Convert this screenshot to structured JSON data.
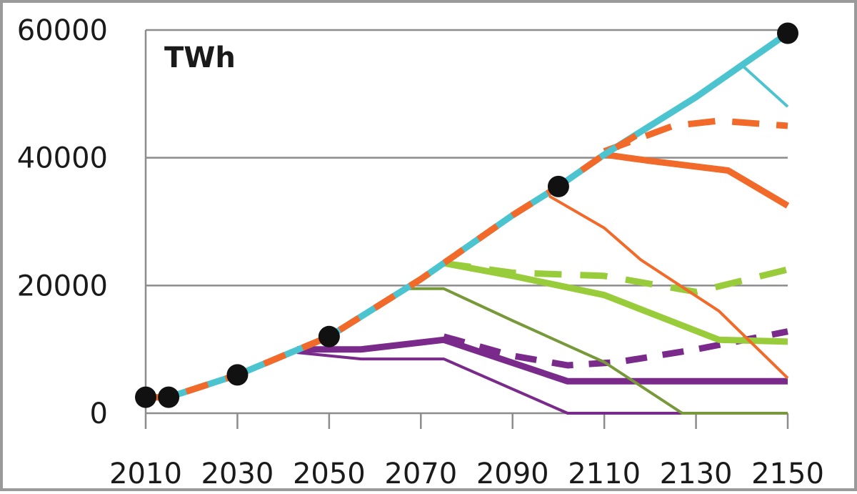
{
  "chart_data": {
    "type": "line",
    "title": "",
    "unit_label": "TWh",
    "xlabel": "",
    "ylabel": "",
    "xlim": [
      2010,
      2150
    ],
    "ylim": [
      0,
      60000
    ],
    "x_ticks": [
      "2010",
      "2030",
      "2050",
      "2070",
      "2090",
      "2110",
      "2130",
      "2150"
    ],
    "y_ticks": [
      "0",
      "20000",
      "40000",
      "60000"
    ],
    "grid": "horizontal",
    "colors": {
      "teal": "#4cc4cf",
      "orange": "#f26a2a",
      "lightgreen": "#99cc3a",
      "olive": "#77993a",
      "purple": "#7a2a8a",
      "marker": "#111111",
      "grid": "#8c8c8c",
      "frame": "#9a9a9a"
    },
    "markers": [
      {
        "x": 2010,
        "y": 2500
      },
      {
        "x": 2015,
        "y": 2500
      },
      {
        "x": 2030,
        "y": 6000
      },
      {
        "x": 2050,
        "y": 12000
      },
      {
        "x": 2100,
        "y": 35500
      },
      {
        "x": 2150,
        "y": 59500
      }
    ],
    "series": [
      {
        "name": "purple thin",
        "color": "purple",
        "width": 4,
        "dash": "",
        "points": [
          [
            2043,
            9500
          ],
          [
            2057,
            8500
          ],
          [
            2075,
            8500
          ],
          [
            2102,
            0
          ],
          [
            2150,
            0
          ]
        ]
      },
      {
        "name": "purple thick",
        "color": "purple",
        "width": 9,
        "dash": "",
        "points": [
          [
            2043,
            10000
          ],
          [
            2057,
            10000
          ],
          [
            2075,
            11500
          ],
          [
            2102,
            5000
          ],
          [
            2130,
            5000
          ],
          [
            2150,
            5000
          ]
        ]
      },
      {
        "name": "purple dashed",
        "color": "purple",
        "width": 9,
        "dash": "30,22",
        "points": [
          [
            2075,
            12000
          ],
          [
            2090,
            9000
          ],
          [
            2102,
            7500
          ],
          [
            2113,
            8000
          ],
          [
            2130,
            10000
          ],
          [
            2150,
            12800
          ]
        ]
      },
      {
        "name": "olive thin",
        "color": "olive",
        "width": 4,
        "dash": "",
        "points": [
          [
            2067,
            19500
          ],
          [
            2075,
            19500
          ],
          [
            2090,
            14500
          ],
          [
            2110,
            8000
          ],
          [
            2127,
            0
          ],
          [
            2150,
            0
          ]
        ]
      },
      {
        "name": "light green thick",
        "color": "lightgreen",
        "width": 9,
        "dash": "",
        "points": [
          [
            2075,
            23500
          ],
          [
            2090,
            21500
          ],
          [
            2110,
            18500
          ],
          [
            2135,
            11500
          ],
          [
            2150,
            11200
          ]
        ]
      },
      {
        "name": "light green dashed",
        "color": "lightgreen",
        "width": 9,
        "dash": "38,26",
        "points": [
          [
            2075,
            23500
          ],
          [
            2090,
            22000
          ],
          [
            2110,
            21500
          ],
          [
            2130,
            19000
          ],
          [
            2150,
            22500
          ]
        ]
      },
      {
        "name": "orange thin",
        "color": "orange",
        "width": 4,
        "dash": "",
        "points": [
          [
            2098,
            34000
          ],
          [
            2110,
            29000
          ],
          [
            2118,
            24000
          ],
          [
            2135,
            16000
          ],
          [
            2150,
            5500
          ]
        ]
      },
      {
        "name": "orange thick",
        "color": "orange",
        "width": 9,
        "dash": "",
        "points": [
          [
            2110,
            40500
          ],
          [
            2120,
            39500
          ],
          [
            2137,
            38000
          ],
          [
            2150,
            32500
          ]
        ]
      },
      {
        "name": "orange dashed high",
        "color": "orange",
        "width": 9,
        "dash": "38,24",
        "points": [
          [
            2110,
            41000
          ],
          [
            2125,
            45000
          ],
          [
            2135,
            45800
          ],
          [
            2150,
            45000
          ]
        ]
      },
      {
        "name": "teal branch",
        "color": "teal",
        "width": 4,
        "dash": "",
        "points": [
          [
            2140,
            54500
          ],
          [
            2150,
            48000
          ]
        ]
      },
      {
        "name": "teal main",
        "color": "teal",
        "width": 9,
        "dash": "",
        "points": [
          [
            2010,
            2500
          ],
          [
            2015,
            2500
          ],
          [
            2030,
            6000
          ],
          [
            2050,
            12000
          ],
          [
            2070,
            21000
          ],
          [
            2090,
            31000
          ],
          [
            2100,
            35500
          ],
          [
            2110,
            40500
          ],
          [
            2130,
            49500
          ],
          [
            2150,
            59500
          ]
        ]
      },
      {
        "name": "orange dashed main",
        "color": "orange",
        "width": 9,
        "dash": "32,26",
        "points": [
          [
            2010,
            2500
          ],
          [
            2015,
            2500
          ],
          [
            2030,
            6000
          ],
          [
            2050,
            12000
          ],
          [
            2070,
            21000
          ],
          [
            2090,
            31000
          ],
          [
            2100,
            35500
          ],
          [
            2110,
            40500
          ],
          [
            2117,
            43500
          ]
        ]
      }
    ]
  }
}
